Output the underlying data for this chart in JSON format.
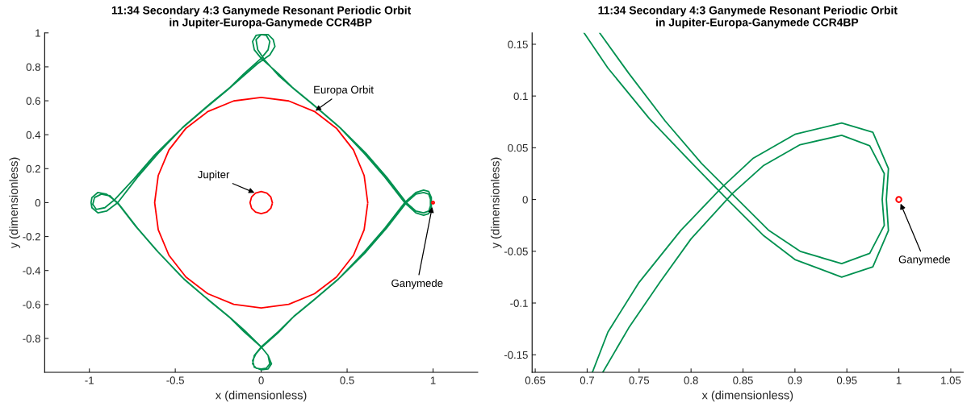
{
  "chart_data": [
    {
      "type": "line",
      "title": "11:34 Secondary 4:3 Ganymede Resonant Periodic Orbit\n      in Jupiter-Europa-Ganymede CCR4BP",
      "xlabel": "x (dimensionless)",
      "ylabel": "y (dimensionless)",
      "xlim": [
        -1.26,
        1.26
      ],
      "ylim": [
        -1,
        1
      ],
      "xticks": [
        -1,
        -0.5,
        0,
        0.5,
        1
      ],
      "yticks": [
        {
          "value": -0.8,
          "label": "-0.8"
        },
        {
          "value": -0.6,
          "label": "-0.6"
        },
        {
          "value": -0.4,
          "label": "-0.4"
        },
        {
          "value": -0.2,
          "label": "-0.2"
        },
        0,
        0.2,
        0.4,
        0.6,
        0.8,
        1
      ],
      "grid": false,
      "legend": false,
      "series": [
        {
          "color": "#009150",
          "x": [
            0.835,
            0.72,
            0.6,
            0.45,
            0.3,
            0.18,
            0.1,
            0.0,
            -0.04,
            -0.05,
            -0.03,
            0.0,
            0.03,
            0.05,
            0.04,
            0.0,
            -0.1,
            -0.18,
            -0.3,
            -0.45,
            -0.6,
            -0.72,
            -0.835,
            -0.9,
            -0.95,
            -0.985,
            -0.99,
            -0.985,
            -0.95,
            -0.9,
            -0.835,
            -0.72,
            -0.6,
            -0.45,
            -0.3,
            -0.18,
            -0.1,
            0.0,
            0.04,
            0.05,
            0.03,
            0.0,
            -0.03,
            -0.05,
            -0.04,
            0.0,
            0.1,
            0.18,
            0.3,
            0.45,
            0.6,
            0.72,
            0.835,
            0.9,
            0.945,
            0.975,
            0.99,
            0.99,
            0.99,
            0.975,
            0.945,
            0.9,
            0.84,
            0.845,
            0.73,
            0.61,
            0.46,
            0.31,
            0.19,
            0.1,
            0.02,
            -0.02,
            -0.03,
            0.0,
            0.04,
            0.07,
            0.08,
            0.05,
            -0.02,
            -0.11,
            -0.2,
            -0.32,
            -0.47,
            -0.62,
            -0.74,
            -0.85,
            -0.91,
            -0.96,
            -0.98,
            -0.97,
            -0.93,
            -0.88,
            -0.83,
            -0.73,
            -0.61,
            -0.46,
            -0.31,
            -0.19,
            -0.1,
            0.0,
            0.04,
            0.06,
            0.04,
            0.0,
            -0.04,
            -0.05,
            -0.03,
            0.0,
            0.1,
            0.19,
            0.31,
            0.46,
            0.61,
            0.73,
            0.845,
            0.9,
            0.945,
            0.975,
            0.985,
            0.985,
            0.975,
            0.945,
            0.9,
            0.85
          ],
          "values": [
            0.0,
            0.15,
            0.29,
            0.45,
            0.58,
            0.68,
            0.76,
            0.85,
            0.9,
            0.95,
            0.985,
            0.99,
            0.985,
            0.95,
            0.9,
            0.85,
            0.76,
            0.68,
            0.58,
            0.45,
            0.29,
            0.15,
            0.0,
            -0.05,
            -0.06,
            -0.03,
            0.0,
            0.03,
            0.06,
            0.05,
            0.0,
            -0.15,
            -0.29,
            -0.45,
            -0.58,
            -0.68,
            -0.76,
            -0.85,
            -0.9,
            -0.95,
            -0.975,
            -0.98,
            -0.975,
            -0.95,
            -0.9,
            -0.85,
            -0.76,
            -0.68,
            -0.58,
            -0.45,
            -0.29,
            -0.15,
            0.0,
            0.06,
            0.074,
            0.065,
            0.03,
            0.0,
            -0.03,
            -0.065,
            -0.075,
            -0.06,
            -0.005,
            0.0,
            0.15,
            0.29,
            0.44,
            0.57,
            0.67,
            0.75,
            0.84,
            0.9,
            0.96,
            0.99,
            0.99,
            0.96,
            0.92,
            0.87,
            0.82,
            0.74,
            0.66,
            0.56,
            0.43,
            0.28,
            0.14,
            0.02,
            -0.03,
            -0.04,
            -0.01,
            0.03,
            0.05,
            0.04,
            -0.01,
            -0.14,
            -0.28,
            -0.44,
            -0.57,
            -0.67,
            -0.75,
            -0.85,
            -0.9,
            -0.95,
            -0.98,
            -0.985,
            -0.97,
            -0.93,
            -0.89,
            -0.855,
            -0.765,
            -0.67,
            -0.57,
            -0.44,
            -0.29,
            -0.15,
            0.0,
            0.05,
            0.06,
            0.05,
            0.02,
            -0.02,
            -0.05,
            -0.06,
            -0.05,
            -0.005
          ]
        },
        {
          "color": "#ff0000",
          "x": [
            0.62,
            0.599,
            0.537,
            0.438,
            0.31,
            0.16,
            0.0,
            -0.16,
            -0.31,
            -0.438,
            -0.537,
            -0.599,
            -0.62,
            -0.599,
            -0.537,
            -0.438,
            -0.31,
            -0.16,
            0.0,
            0.16,
            0.31,
            0.438,
            0.537,
            0.599,
            0.619
          ],
          "values": [
            0.0,
            0.16,
            0.31,
            0.438,
            0.537,
            0.599,
            0.62,
            0.599,
            0.537,
            0.438,
            0.31,
            0.16,
            0.0,
            -0.16,
            -0.31,
            -0.438,
            -0.537,
            -0.599,
            -0.62,
            -0.599,
            -0.537,
            -0.438,
            -0.31,
            -0.16,
            -0.01
          ]
        },
        {
          "color": "#ff0000",
          "x": [
            0.065,
            0.056,
            0.033,
            0.0,
            -0.033,
            -0.056,
            -0.065,
            -0.056,
            -0.033,
            0.0,
            0.033,
            0.056,
            0.064
          ],
          "values": [
            0.0,
            0.033,
            0.056,
            0.065,
            0.056,
            0.033,
            0.0,
            -0.033,
            -0.056,
            -0.065,
            -0.056,
            -0.033,
            -0.008
          ]
        },
        {
          "type": "scatter",
          "color": "#ff0000",
          "marker": "circle",
          "x": [
            1.0
          ],
          "values": [
            0.0
          ]
        }
      ],
      "annotations": [
        {
          "text": "Europa Orbit",
          "x": 0.31,
          "y": 0.537
        },
        {
          "text": "Jupiter",
          "x": -0.033,
          "y": 0.056
        },
        {
          "text": "Ganymede",
          "x": 1.0,
          "y": 0.0
        }
      ]
    },
    {
      "type": "line",
      "title": "11:34 Secondary 4:3 Ganymede Resonant Periodic Orbit\n      in Jupiter-Europa-Ganymede CCR4BP",
      "xlabel": "x (dimensionless)",
      "ylabel": "y (dimensionless)",
      "xlim": [
        0.647,
        1.062
      ],
      "ylim": [
        -0.167,
        0.161
      ],
      "xticks": [
        0.65,
        0.7,
        0.75,
        0.8,
        0.85,
        0.9,
        0.95,
        1,
        1.05
      ],
      "yticks": [
        {
          "value": -0.15,
          "label": "-0.15"
        },
        {
          "value": -0.1,
          "label": "-0.1"
        },
        {
          "value": -0.05,
          "label": "-0.05"
        },
        0,
        0.05,
        0.1,
        0.15
      ],
      "grid": false,
      "legend": false,
      "series": [
        {
          "color": "#009150",
          "x": [
            0.697,
            0.72,
            0.76,
            0.8,
            0.835,
            0.87,
            0.9,
            0.945,
            0.975,
            0.99,
            0.988,
            0.99,
            0.975,
            0.945,
            0.9,
            0.86,
            0.83,
            0.79,
            0.75,
            0.72,
            0.705
          ],
          "values": [
            0.161,
            0.127,
            0.078,
            0.036,
            0.0,
            -0.035,
            -0.058,
            -0.075,
            -0.065,
            -0.03,
            0.0,
            0.03,
            0.065,
            0.074,
            0.063,
            0.04,
            0.012,
            -0.03,
            -0.08,
            -0.128,
            -0.167
          ]
        },
        {
          "color": "#009150",
          "x": [
            0.712,
            0.74,
            0.775,
            0.81,
            0.845,
            0.875,
            0.905,
            0.945,
            0.972,
            0.986,
            0.984,
            0.986,
            0.972,
            0.945,
            0.905,
            0.87,
            0.84,
            0.8,
            0.77,
            0.74,
            0.715
          ],
          "values": [
            0.161,
            0.122,
            0.076,
            0.035,
            0.0,
            -0.03,
            -0.05,
            -0.062,
            -0.052,
            -0.025,
            0.0,
            0.025,
            0.052,
            0.062,
            0.053,
            0.033,
            0.006,
            -0.038,
            -0.08,
            -0.124,
            -0.167
          ]
        },
        {
          "type": "scatter",
          "color": "#ff0000",
          "marker": "circle",
          "x": [
            1.0
          ],
          "values": [
            0.0
          ]
        }
      ],
      "annotations": [
        {
          "text": "Ganymede",
          "x": 1.0,
          "y": 0.0
        }
      ]
    }
  ]
}
